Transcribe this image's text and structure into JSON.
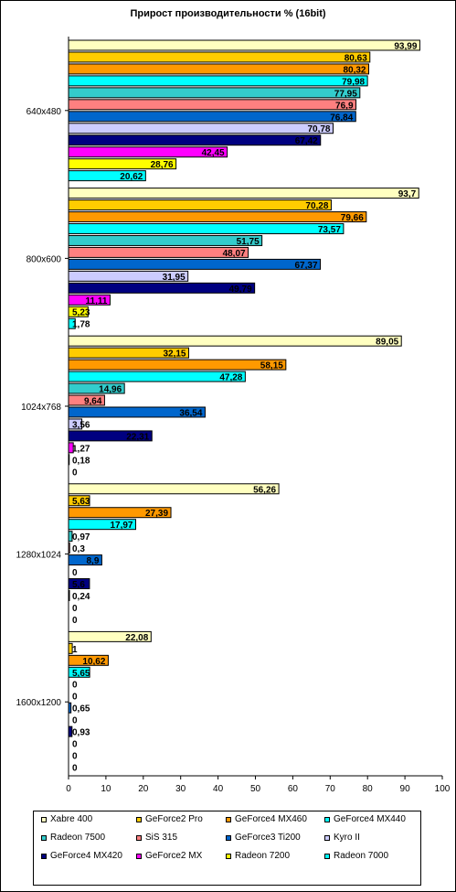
{
  "chart_data": {
    "type": "bar",
    "orientation": "horizontal",
    "title": "Прирост производительности % (16bit)",
    "xlim": [
      0,
      100
    ],
    "x_ticks": [
      "0",
      "10",
      "20",
      "30",
      "40",
      "50",
      "60",
      "70",
      "80",
      "90",
      "100"
    ],
    "categories": [
      "640x480",
      "800x600",
      "1024x768",
      "1280x1024",
      "1600x1200"
    ],
    "legend_position": "bottom",
    "grid": false,
    "series": [
      {
        "name": "Xabre 400",
        "color": "#FFFFC0",
        "values": [
          93.99,
          93.7,
          89.05,
          56.26,
          22.08
        ],
        "labels": [
          "93,99",
          "93,7",
          "89,05",
          "56,26",
          "22,08"
        ]
      },
      {
        "name": "GeForce2 Pro",
        "color": "#FFCC00",
        "values": [
          80.63,
          70.28,
          32.15,
          5.63,
          1
        ],
        "labels": [
          "80,63",
          "70,28",
          "32,15",
          "5,63",
          "1"
        ]
      },
      {
        "name": "GeForce4 MX460",
        "color": "#FF9900",
        "values": [
          80.32,
          79.66,
          58.15,
          27.39,
          10.62
        ],
        "labels": [
          "80,32",
          "79,66",
          "58,15",
          "27,39",
          "10,62"
        ]
      },
      {
        "name": "GeForce4 MX440",
        "color": "#00FFFF",
        "values": [
          79.98,
          73.57,
          47.28,
          17.97,
          5.65
        ],
        "labels": [
          "79,98",
          "73,57",
          "47,28",
          "17,97",
          "5,65"
        ]
      },
      {
        "name": "Radeon 7500",
        "color": "#33CCCC",
        "values": [
          77.95,
          51.75,
          14.96,
          0.97,
          0
        ],
        "labels": [
          "77,95",
          "51,75",
          "14,96",
          "0,97",
          "0"
        ]
      },
      {
        "name": "SiS 315",
        "color": "#FF8080",
        "values": [
          76.9,
          48.07,
          9.64,
          0.3,
          0
        ],
        "labels": [
          "76,9",
          "48,07",
          "9,64",
          "0,3",
          "0"
        ]
      },
      {
        "name": "GeForce3 Ti200",
        "color": "#0066CC",
        "values": [
          76.84,
          67.37,
          36.54,
          8.9,
          0.65
        ],
        "labels": [
          "76,84",
          "67,37",
          "36,54",
          "8,9",
          "0,65"
        ]
      },
      {
        "name": "Kyro II",
        "color": "#CCCCFF",
        "values": [
          70.78,
          31.95,
          3.56,
          0,
          0
        ],
        "labels": [
          "70,78",
          "31,95",
          "3,56",
          "0",
          "0"
        ]
      },
      {
        "name": "GeForce4 MX420",
        "color": "#000080",
        "values": [
          67.42,
          49.79,
          22.31,
          5.6,
          0.93
        ],
        "labels": [
          "67,42",
          "49,79",
          "22,31",
          "5,6",
          "0,93"
        ]
      },
      {
        "name": "GeForce2 MX",
        "color": "#FF00FF",
        "values": [
          42.45,
          11.11,
          1.27,
          0.24,
          0
        ],
        "labels": [
          "42,45",
          "11,11",
          "1,27",
          "0,24",
          "0"
        ]
      },
      {
        "name": "Radeon 7200",
        "color": "#FFFF00",
        "values": [
          28.76,
          5.23,
          0.18,
          0,
          0
        ],
        "labels": [
          "28,76",
          "5,23",
          "0,18",
          "0",
          "0"
        ]
      },
      {
        "name": "Radeon 7000",
        "color": "#00FFFF",
        "values": [
          20.62,
          1.78,
          0,
          0,
          0
        ],
        "labels": [
          "20,62",
          "1,78",
          "0",
          "0",
          "0"
        ]
      }
    ]
  }
}
